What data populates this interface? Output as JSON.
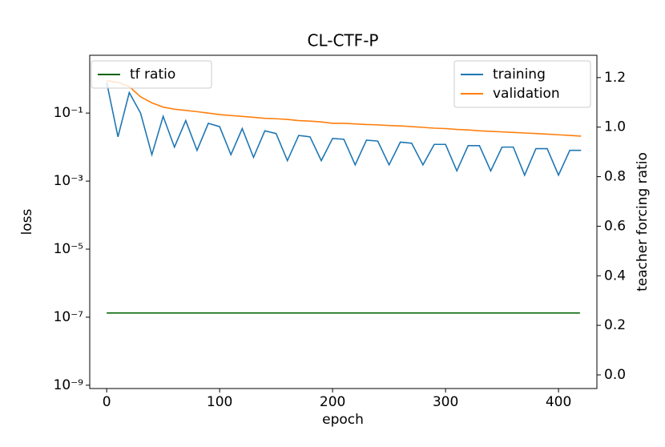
{
  "chart_data": {
    "type": "line",
    "title": "CL-CTF-P",
    "xlabel": "epoch",
    "ylabel": "loss",
    "y2label": "teacher forcing ratio",
    "yscale": "log",
    "xlim": [
      -15,
      434
    ],
    "ylim": [
      8e-10,
      5
    ],
    "y2lim": [
      -0.055,
      1.29
    ],
    "xticks": [
      0,
      100,
      200,
      300,
      400
    ],
    "yticks": [
      {
        "value": 1e-09,
        "label": "10⁻⁹"
      },
      {
        "value": 1e-07,
        "label": "10⁻⁷"
      },
      {
        "value": 1e-05,
        "label": "10⁻⁵"
      },
      {
        "value": 0.001,
        "label": "10⁻³"
      },
      {
        "value": 0.1,
        "label": "10⁻¹"
      }
    ],
    "y2ticks": [
      {
        "value": 0,
        "label": "0.0"
      },
      0.2,
      0.4,
      0.6,
      0.8,
      {
        "value": 1,
        "label": "1.0"
      },
      1.2
    ],
    "legend": "upper right",
    "y2legend": "upper left",
    "grid": false,
    "series": [
      {
        "name": "training",
        "color": "#1f77b4",
        "x": [
          0,
          10,
          20,
          30,
          40,
          50,
          60,
          70,
          80,
          90,
          100,
          110,
          120,
          130,
          140,
          150,
          160,
          170,
          180,
          190,
          200,
          210,
          220,
          230,
          240,
          250,
          260,
          270,
          280,
          290,
          300,
          310,
          320,
          330,
          340,
          350,
          360,
          370,
          380,
          390,
          400,
          410,
          420
        ],
        "values": [
          0.8,
          0.02,
          0.4,
          0.1,
          0.006,
          0.08,
          0.01,
          0.06,
          0.008,
          0.05,
          0.04,
          0.006,
          0.035,
          0.005,
          0.03,
          0.025,
          0.004,
          0.022,
          0.02,
          0.004,
          0.018,
          0.017,
          0.003,
          0.016,
          0.015,
          0.003,
          0.014,
          0.013,
          0.003,
          0.012,
          0.012,
          0.002,
          0.011,
          0.011,
          0.002,
          0.01,
          0.01,
          0.0015,
          0.009,
          0.009,
          0.0015,
          0.008,
          0.008
        ]
      },
      {
        "name": "validation",
        "color": "#ff7f0e",
        "x": [
          0,
          10,
          20,
          30,
          40,
          50,
          60,
          70,
          80,
          90,
          100,
          110,
          120,
          130,
          140,
          150,
          160,
          170,
          180,
          190,
          200,
          210,
          220,
          230,
          240,
          250,
          260,
          270,
          280,
          290,
          300,
          310,
          320,
          330,
          340,
          350,
          360,
          370,
          380,
          390,
          400,
          410,
          420
        ],
        "values": [
          0.9,
          0.8,
          0.6,
          0.3,
          0.2,
          0.15,
          0.13,
          0.12,
          0.11,
          0.1,
          0.09,
          0.085,
          0.08,
          0.075,
          0.07,
          0.068,
          0.065,
          0.06,
          0.058,
          0.055,
          0.05,
          0.05,
          0.048,
          0.046,
          0.045,
          0.043,
          0.042,
          0.04,
          0.038,
          0.036,
          0.035,
          0.033,
          0.032,
          0.03,
          0.029,
          0.028,
          0.027,
          0.026,
          0.025,
          0.024,
          0.023,
          0.022,
          0.021
        ]
      },
      {
        "name": "tf ratio",
        "color": "#006400",
        "axis": "y2",
        "x": [
          0,
          419
        ],
        "values": [
          0.25,
          0.25
        ]
      }
    ]
  }
}
